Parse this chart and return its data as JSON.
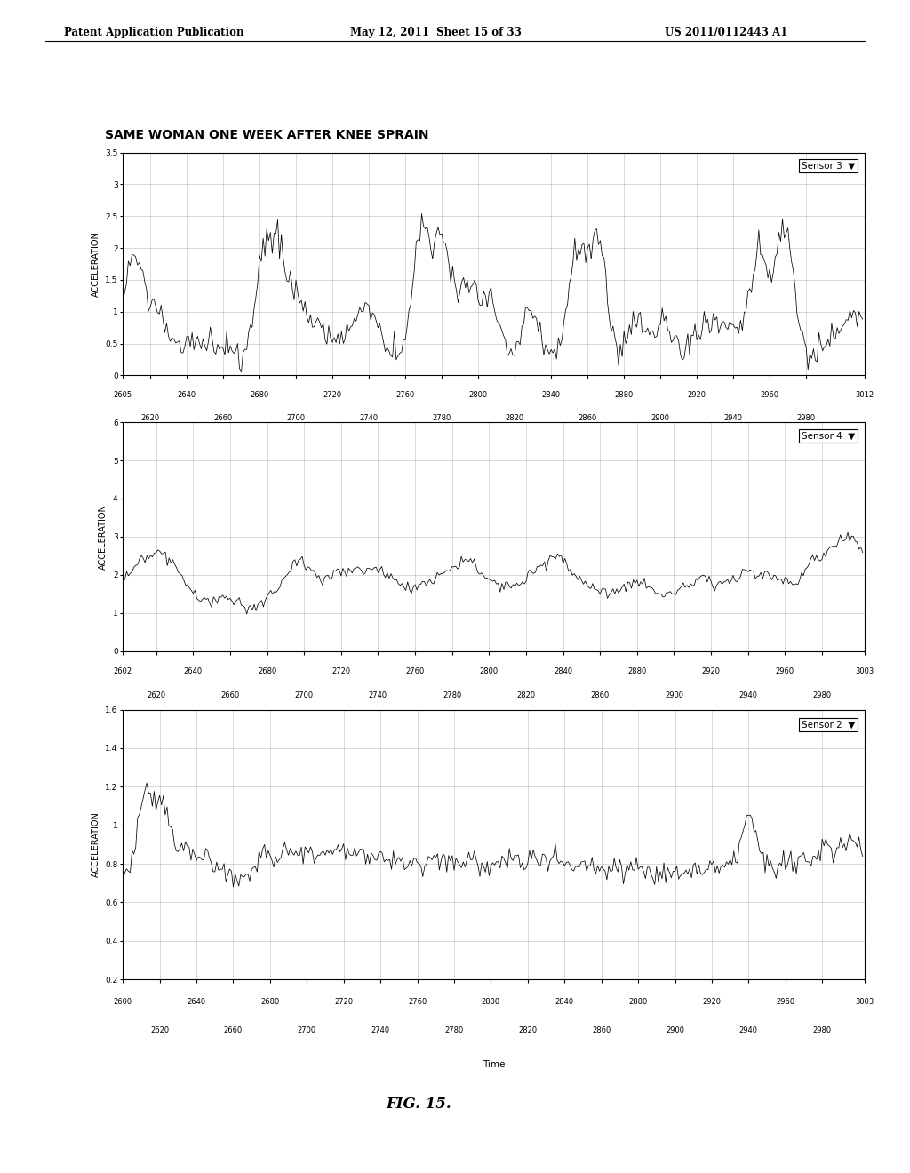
{
  "header_left": "Patent Application Publication",
  "header_mid": "May 12, 2011  Sheet 15 of 33",
  "header_right": "US 2011/0112443 A1",
  "title": "SAME WOMAN ONE WEEK AFTER KNEE SPRAIN",
  "fig_label": "FIG. 15.",
  "charts": [
    {
      "sensor": "Sensor 3",
      "xmin": 2605,
      "xmax": 3012,
      "ymin": 0,
      "ymax": 3.5,
      "yticks": [
        0,
        0.5,
        1,
        1.5,
        2,
        2.5,
        3,
        3.5
      ],
      "ytick_labels": [
        "0",
        "0.5",
        "1",
        "1.5",
        "2",
        "2.5",
        "3",
        "3.5"
      ],
      "xticks_top": [
        2605,
        2640,
        2680,
        2720,
        2760,
        2800,
        2840,
        2880,
        2920,
        2960,
        3012
      ],
      "xticks_bot": [
        2620,
        2660,
        2700,
        2740,
        2780,
        2820,
        2860,
        2900,
        2940,
        2980
      ],
      "xlabel": "Time",
      "ylabel": "ACCELERATION"
    },
    {
      "sensor": "Sensor 4",
      "xmin": 2602,
      "xmax": 3003,
      "ymin": 0,
      "ymax": 6,
      "yticks": [
        0,
        1,
        2,
        3,
        4,
        5,
        6
      ],
      "ytick_labels": [
        "0",
        "1",
        "2",
        "3",
        "4",
        "5",
        "6"
      ],
      "xticks_top": [
        2602,
        2640,
        2680,
        2720,
        2760,
        2800,
        2840,
        2880,
        2920,
        2960,
        3003
      ],
      "xticks_bot": [
        2620,
        2660,
        2700,
        2740,
        2780,
        2820,
        2860,
        2900,
        2940,
        2980
      ],
      "xlabel": "Time",
      "ylabel": "ACCELERATION"
    },
    {
      "sensor": "Sensor 2",
      "xmin": 2600,
      "xmax": 3003,
      "ymin": 0.2,
      "ymax": 1.6,
      "yticks": [
        0.2,
        0.4,
        0.6,
        0.8,
        1.0,
        1.2,
        1.4,
        1.6
      ],
      "ytick_labels": [
        "0.2",
        "0.4",
        "0.6",
        "0.8",
        "1",
        "1.2",
        "1.4",
        "1.6"
      ],
      "xticks_top": [
        2600,
        2640,
        2680,
        2720,
        2760,
        2800,
        2840,
        2880,
        2920,
        2960,
        3003
      ],
      "xticks_bot": [
        2620,
        2660,
        2700,
        2740,
        2780,
        2820,
        2860,
        2900,
        2940,
        2980
      ],
      "xlabel": "Time",
      "ylabel": "ACCELERATION"
    }
  ],
  "bg_color": "#ffffff",
  "line_color": "#000000",
  "grid_color": "#bbbbbb"
}
